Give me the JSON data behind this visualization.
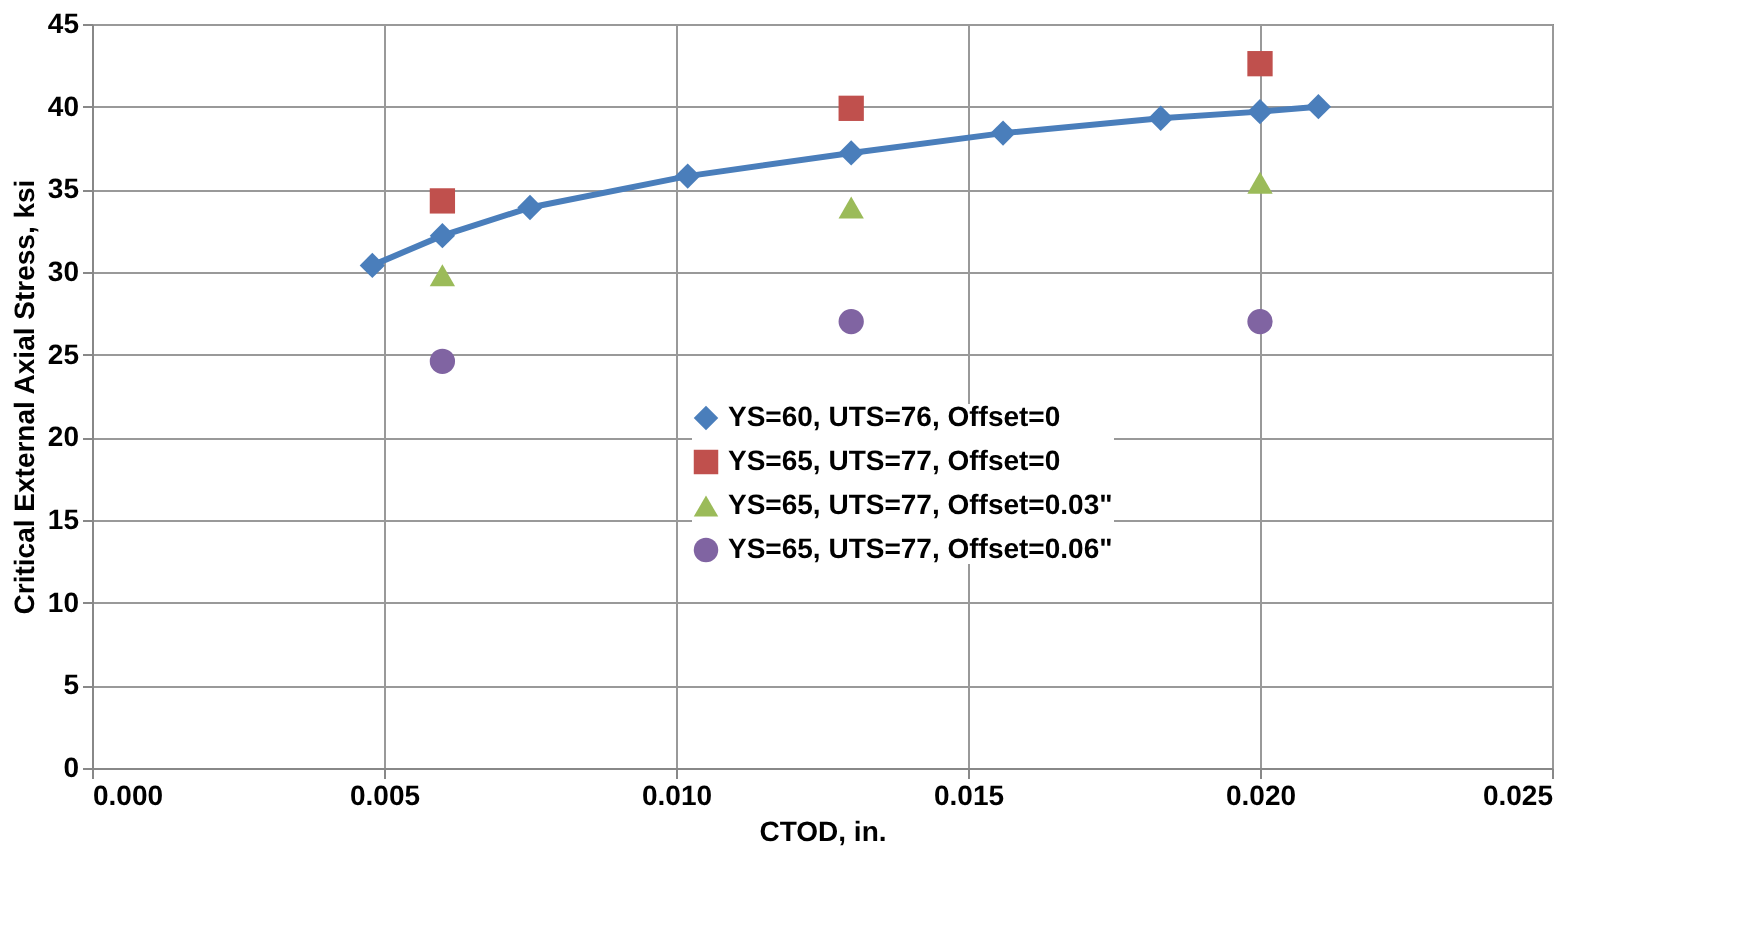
{
  "chart_data": {
    "type": "scatter",
    "xlabel": "CTOD, in.",
    "ylabel": "Critical External Axial Stress, ksi",
    "xlim": [
      0,
      0.025
    ],
    "xticks": [
      {
        "value": 0,
        "label": "0.000"
      },
      {
        "value": 0.005,
        "label": "0.005"
      },
      {
        "value": 0.01,
        "label": "0.010"
      },
      {
        "value": 0.015,
        "label": "0.015"
      },
      {
        "value": 0.02,
        "label": "0.020"
      },
      {
        "value": 0.025,
        "label": "0.025"
      }
    ],
    "ylim": [
      0,
      45
    ],
    "yticks": [
      0,
      5,
      10,
      15,
      20,
      25,
      30,
      35,
      40,
      45
    ],
    "grid": true,
    "legend": "center",
    "series": [
      {
        "name": "YS=60, UTS=76, Offset=0",
        "type": "line",
        "marker": "diamond",
        "color": "#4a7ebb",
        "x": [
          0.0048,
          0.006,
          0.0075,
          0.0102,
          0.013,
          0.0156,
          0.0183,
          0.02,
          0.021
        ],
        "values": [
          30.4,
          32.2,
          33.9,
          35.8,
          37.2,
          38.4,
          39.3,
          39.7,
          40.0
        ]
      },
      {
        "name": "YS=65, UTS=77, Offset=0",
        "marker": "square",
        "color": "#c0504d",
        "x": [
          0.006,
          0.013,
          0.02
        ],
        "values": [
          34.3,
          39.9,
          42.6
        ]
      },
      {
        "name": "YS=65, UTS=77, Offset=0.03\"",
        "marker": "triangle",
        "color": "#9bbb59",
        "x": [
          0.006,
          0.013,
          0.02
        ],
        "values": [
          29.8,
          33.9,
          35.4
        ]
      },
      {
        "name": "YS=65, UTS=77, Offset=0.06\"",
        "marker": "circle",
        "color": "#8064a2",
        "x": [
          0.006,
          0.013,
          0.02
        ],
        "values": [
          24.6,
          27.0,
          27.0
        ]
      }
    ]
  }
}
